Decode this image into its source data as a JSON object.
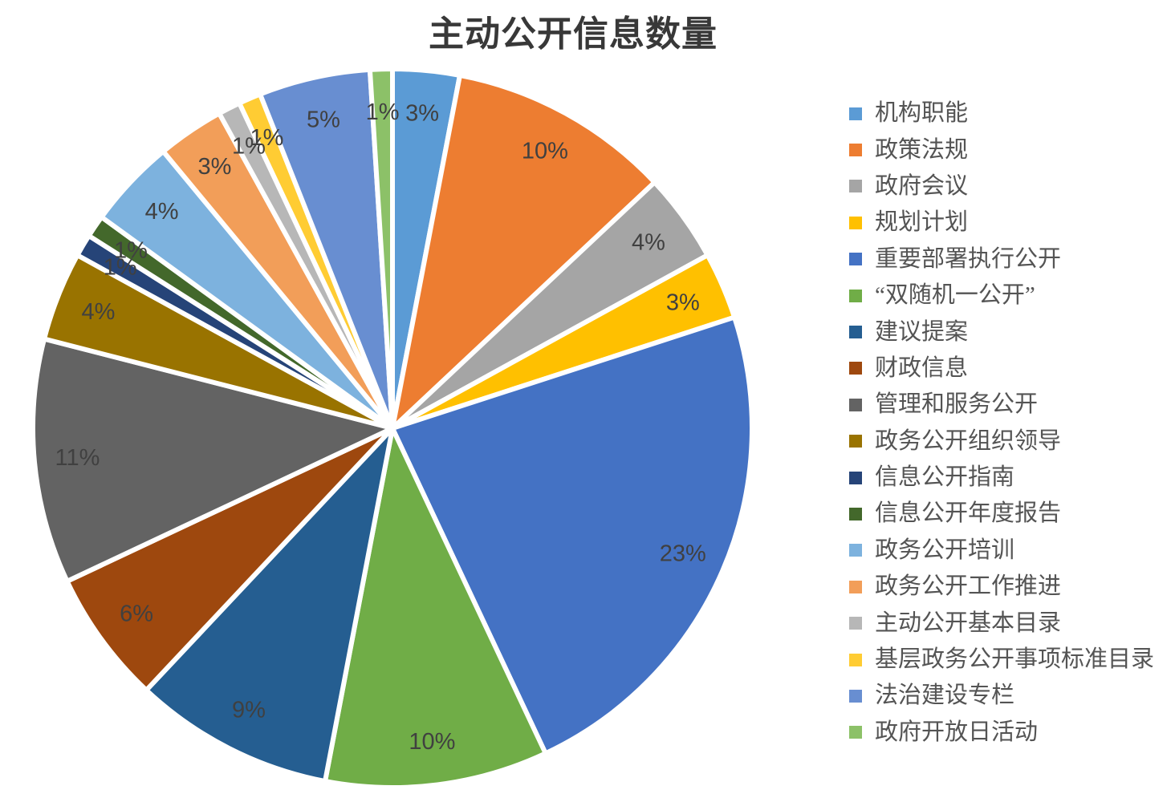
{
  "chart_data": {
    "type": "pie",
    "title": "主动公开信息数量",
    "start_angle_deg": 0,
    "direction": "clockwise",
    "legend_position": "right",
    "data_label_format": "percent",
    "data_label_color": "#404040",
    "title_color": "#383838",
    "legend_text_color": "#545454",
    "background_color": "#FFFFFF",
    "slice_border_color": "#FFFFFF",
    "slices": [
      {
        "label": "机构职能",
        "pct": 3,
        "color": "#5B9BD5"
      },
      {
        "label": "政策法规",
        "pct": 10,
        "color": "#ED7D31"
      },
      {
        "label": "政府会议",
        "pct": 4,
        "color": "#A5A5A5"
      },
      {
        "label": "规划计划",
        "pct": 3,
        "color": "#FFC000"
      },
      {
        "label": "重要部署执行公开",
        "pct": 23,
        "color": "#4472C4"
      },
      {
        "label": "“双随机一公开”",
        "pct": 10,
        "color": "#70AD47"
      },
      {
        "label": "建议提案",
        "pct": 9,
        "color": "#255E91"
      },
      {
        "label": "财政信息",
        "pct": 6,
        "color": "#9E480E"
      },
      {
        "label": "管理和服务公开",
        "pct": 11,
        "color": "#636363"
      },
      {
        "label": "政务公开组织领导",
        "pct": 4,
        "color": "#997300"
      },
      {
        "label": "信息公开指南",
        "pct": 1,
        "color": "#264478"
      },
      {
        "label": "信息公开年度报告",
        "pct": 1,
        "color": "#43682B"
      },
      {
        "label": "政务公开培训",
        "pct": 4,
        "color": "#7DB2DE"
      },
      {
        "label": "政务公开工作推进",
        "pct": 3,
        "color": "#F29E59"
      },
      {
        "label": "主动公开基本目录",
        "pct": 1,
        "color": "#B7B7B7"
      },
      {
        "label": "基层政务公开事项标准目录",
        "pct": 1,
        "color": "#FFCC33"
      },
      {
        "label": "法治建设专栏",
        "pct": 5,
        "color": "#688ED1"
      },
      {
        "label": "政府开放日活动",
        "pct": 1,
        "color": "#8CC168"
      }
    ]
  }
}
